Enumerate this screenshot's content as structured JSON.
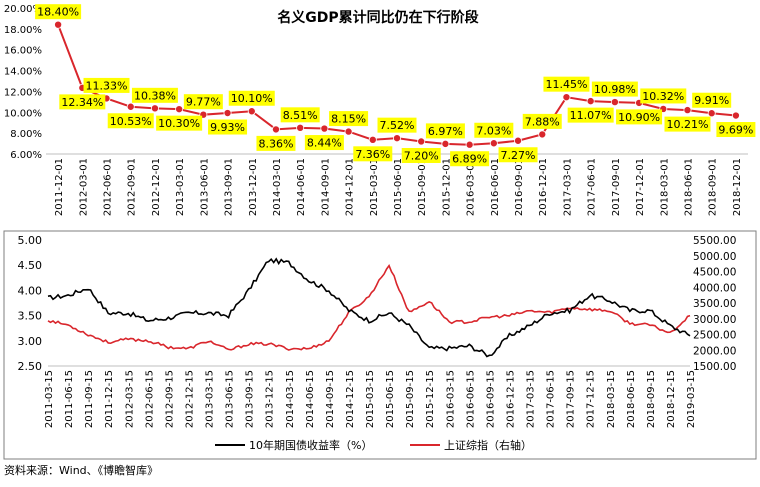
{
  "source_note": "资料来源：Wind、《博瞻智库》",
  "chart_data": [
    {
      "type": "line",
      "title": "名义GDP累计同比仍在下行阶段",
      "ylim": [
        6,
        20
      ],
      "y_ticks": [
        "6.00%",
        "8.00%",
        "10.00%",
        "12.00%",
        "14.00%",
        "16.00%",
        "18.00%",
        "20.00%"
      ],
      "y_tick_values": [
        6,
        8,
        10,
        12,
        14,
        16,
        18,
        20
      ],
      "x_tick_labels": [
        "2011-12-01",
        "2012-03-01",
        "2012-06-01",
        "2012-09-01",
        "2012-12-01",
        "2013-03-01",
        "2013-06-01",
        "2013-09-01",
        "2013-12-01",
        "2014-03-01",
        "2014-06-01",
        "2014-09-01",
        "2014-12-01",
        "2015-03-01",
        "2015-06-01",
        "2015-09-01",
        "2015-12-01",
        "2016-03-01",
        "2016-06-01",
        "2016-09-01",
        "2016-12-01",
        "2017-03-01",
        "2017-06-01",
        "2017-09-01",
        "2017-12-01",
        "2018-03-01",
        "2018-06-01",
        "2018-09-01",
        "2018-12-01"
      ],
      "values": [
        18.4,
        12.34,
        11.33,
        10.53,
        10.38,
        10.3,
        9.77,
        9.93,
        10.1,
        8.36,
        8.51,
        8.44,
        8.15,
        7.36,
        7.52,
        7.2,
        6.97,
        6.89,
        7.03,
        7.27,
        7.88,
        11.45,
        11.07,
        10.98,
        10.9,
        10.32,
        10.21,
        9.91,
        9.69
      ],
      "data_labels": [
        "18.40%",
        "12.34%",
        "11.33%",
        "10.53%",
        "10.38%",
        "10.30%",
        "9.77%",
        "9.93%",
        "10.10%",
        "8.36%",
        "8.51%",
        "8.44%",
        "8.15%",
        "7.36%",
        "7.52%",
        "7.20%",
        "6.97%",
        "6.89%",
        "7.03%",
        "7.27%",
        "7.88%",
        "11.45%",
        "11.07%",
        "10.98%",
        "10.90%",
        "10.32%",
        "10.21%",
        "9.91%",
        "9.69%"
      ],
      "label_positions": [
        "above",
        "below",
        "above",
        "below",
        "above",
        "below",
        "above",
        "below",
        "above",
        "below",
        "above",
        "below",
        "above",
        "below",
        "above",
        "below",
        "above",
        "below",
        "above",
        "below",
        "above",
        "above",
        "below",
        "above",
        "below",
        "above",
        "below",
        "above",
        "below"
      ],
      "line_color": "#d9262c",
      "label_bg": "#ffff00"
    },
    {
      "type": "line",
      "x_tick_labels": [
        "2011-03-15",
        "2011-06-15",
        "2011-09-15",
        "2011-12-15",
        "2012-03-15",
        "2012-06-15",
        "2012-09-15",
        "2012-12-15",
        "2013-03-15",
        "2013-06-15",
        "2013-09-15",
        "2013-12-15",
        "2014-03-15",
        "2014-06-15",
        "2014-09-15",
        "2014-12-15",
        "2015-03-15",
        "2015-06-15",
        "2015-09-15",
        "2015-12-15",
        "2016-03-15",
        "2016-06-15",
        "2016-09-15",
        "2016-12-15",
        "2017-03-15",
        "2017-06-15",
        "2017-09-15",
        "2017-12-15",
        "2018-03-15",
        "2018-06-15",
        "2018-09-15",
        "2018-12-15",
        "2019-03-15"
      ],
      "y_left": {
        "ticks": [
          "2.50",
          "3.00",
          "3.50",
          "4.00",
          "4.50",
          "5.00"
        ],
        "values": [
          2.5,
          3.0,
          3.5,
          4.0,
          4.5,
          5.0
        ],
        "ylim": [
          2.5,
          5.0
        ]
      },
      "y_right": {
        "ticks": [
          "1500.00",
          "2000.00",
          "2500.00",
          "3000.00",
          "3500.00",
          "4000.00",
          "4500.00",
          "5000.00",
          "5500.00"
        ],
        "values": [
          1500,
          2000,
          2500,
          3000,
          3500,
          4000,
          4500,
          5000,
          5500
        ],
        "ylim": [
          1500,
          5500
        ]
      },
      "series": [
        {
          "name": "10年期国债收益率（%）",
          "axis": "left",
          "color": "#000000",
          "values": [
            3.85,
            3.9,
            4.05,
            3.55,
            3.55,
            3.4,
            3.45,
            3.55,
            3.55,
            3.5,
            4.0,
            4.6,
            4.55,
            4.2,
            4.0,
            3.6,
            3.4,
            3.55,
            3.3,
            2.85,
            2.85,
            2.9,
            2.7,
            3.1,
            3.3,
            3.55,
            3.6,
            3.9,
            3.8,
            3.6,
            3.6,
            3.3,
            3.1
          ]
        },
        {
          "name": "上证综指（右轴）",
          "axis": "right",
          "color": "#d9262c",
          "values": [
            2950,
            2800,
            2500,
            2250,
            2350,
            2300,
            2100,
            2050,
            2300,
            2000,
            2200,
            2200,
            2050,
            2050,
            2300,
            3200,
            3700,
            4700,
            3200,
            3550,
            2900,
            2900,
            3050,
            3100,
            3250,
            3200,
            3350,
            3300,
            3250,
            2850,
            2800,
            2550,
            3100
          ]
        }
      ],
      "legend": [
        "10年期国债收益率（%）",
        "上证综指（右轴）"
      ],
      "legend_position": "bottom"
    }
  ]
}
